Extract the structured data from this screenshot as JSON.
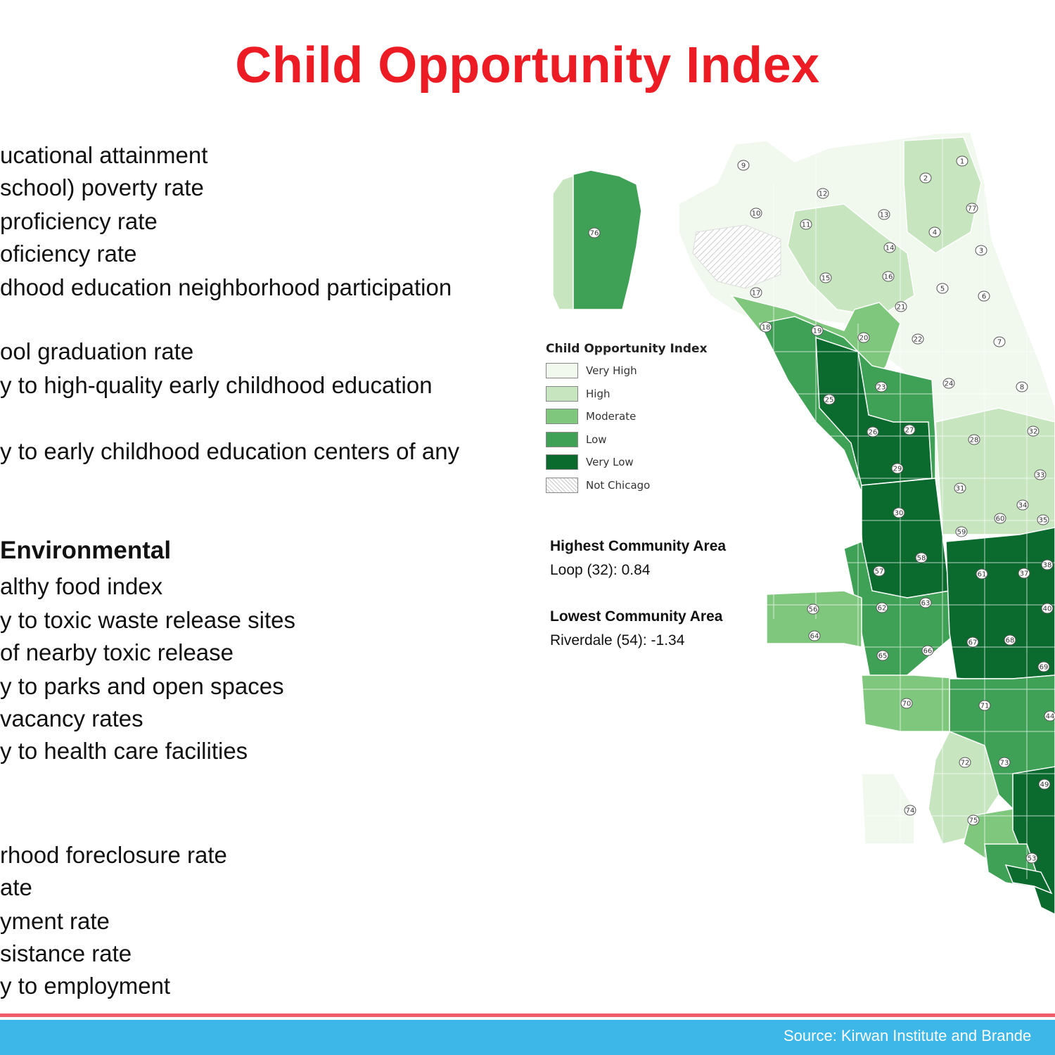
{
  "title": "Child Opportunity Index",
  "left_lines": [
    "ucational attainment",
    " school) poverty rate",
    "proficiency rate",
    "oficiency rate",
    "dhood education neighborhood participation",
    "ool graduation rate",
    "y to high-quality early childhood education",
    "y to early childhood education centers of any",
    "Environmental",
    "althy food index",
    "y to toxic waste release sites",
    "of nearby toxic release",
    "y to parks and open spaces",
    "vacancy rates",
    "y to health care facilities",
    "rhood foreclosure rate",
    "ate",
    "yment rate",
    "sistance rate",
    "y to employment"
  ],
  "legend": {
    "title": "Child Opportunity Index",
    "items": [
      {
        "label": "Very High",
        "color": "#f1f8ee"
      },
      {
        "label": "High",
        "color": "#c7e6c0"
      },
      {
        "label": "Moderate",
        "color": "#7fc77c"
      },
      {
        "label": "Low",
        "color": "#3fa156"
      },
      {
        "label": "Very Low",
        "color": "#0b6b2e"
      },
      {
        "label": "Not Chicago",
        "color": "hatched"
      }
    ]
  },
  "highest": {
    "heading": "Highest  Community Area",
    "value": "Loop  (32): 0.84"
  },
  "lowest": {
    "heading": "Lowest Community Area",
    "value": "Riverdale (54): -1.34"
  },
  "map_labels": [
    "1",
    "2",
    "3",
    "4",
    "5",
    "6",
    "7",
    "8",
    "9",
    "10",
    "11",
    "12",
    "13",
    "14",
    "15",
    "16",
    "17",
    "18",
    "19",
    "20",
    "21",
    "22",
    "23",
    "24",
    "25",
    "26",
    "27",
    "28",
    "29",
    "30",
    "31",
    "32",
    "33",
    "34",
    "35",
    "37",
    "38",
    "40",
    "44",
    "49",
    "53",
    "56",
    "57",
    "58",
    "59",
    "60",
    "61",
    "62",
    "63",
    "64",
    "65",
    "66",
    "67",
    "68",
    "69",
    "70",
    "71",
    "72",
    "73",
    "74",
    "75",
    "76",
    "77"
  ],
  "source": "Source:  Kirwan Institute and Brande"
}
